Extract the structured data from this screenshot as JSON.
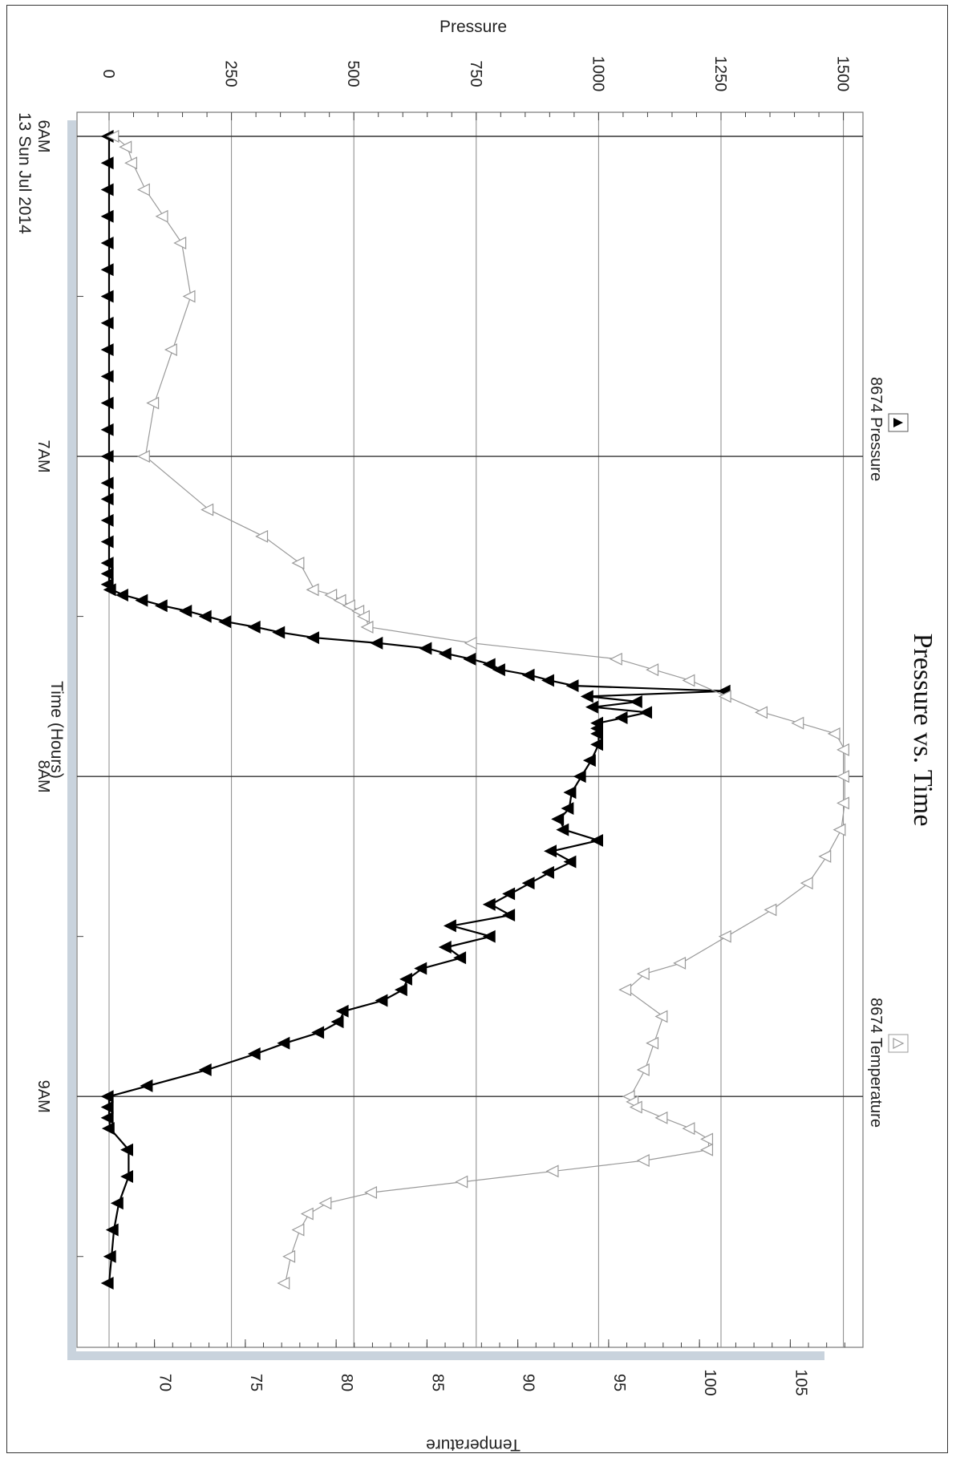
{
  "chart_data": {
    "type": "line",
    "title": "Pressure vs. Time",
    "xlabel": "Time (Hours)",
    "date_label": "13 Sun Jul 2014",
    "y1label": "Pressure",
    "y2label": "Temperature",
    "x_ticks": [
      "6AM",
      "7AM",
      "8AM",
      "9AM"
    ],
    "x_range": [
      "06:00",
      "09:35"
    ],
    "y1_ticks": [
      0,
      250,
      500,
      750,
      1000,
      1250,
      1500
    ],
    "y1lim": [
      0,
      1540
    ],
    "y2_ticks": [
      70,
      75,
      80,
      85,
      90,
      95,
      100,
      105
    ],
    "y2lim": [
      67.5,
      109
    ],
    "grid": true,
    "orientation": "rotated 90° clockwise",
    "legend": [
      "8674 Pressure",
      "8674 Temperature"
    ],
    "series": [
      {
        "name": "8674 Pressure",
        "axis": "Pressure",
        "marker": "filled-triangle",
        "color": "#000000",
        "x": [
          "06:00",
          "06:05",
          "06:10",
          "06:15",
          "06:20",
          "06:25",
          "06:30",
          "06:35",
          "06:40",
          "06:45",
          "06:50",
          "06:55",
          "07:00",
          "07:05",
          "07:08",
          "07:12",
          "07:16",
          "07:20",
          "07:22",
          "07:24",
          "07:25",
          "07:26",
          "07:27",
          "07:28",
          "07:29",
          "07:30",
          "07:31",
          "07:32",
          "07:33",
          "07:34",
          "07:35",
          "07:36",
          "07:37",
          "07:38",
          "07:39",
          "07:40",
          "07:41",
          "07:42",
          "07:43",
          "07:44",
          "07:45",
          "07:46",
          "07:47",
          "07:48",
          "07:49",
          "07:50",
          "07:51",
          "07:52",
          "07:54",
          "07:57",
          "08:00",
          "08:03",
          "08:06",
          "08:08",
          "08:10",
          "08:12",
          "08:14",
          "08:16",
          "08:18",
          "08:20",
          "08:22",
          "08:24",
          "08:26",
          "08:28",
          "08:30",
          "08:32",
          "08:34",
          "08:36",
          "08:38",
          "08:40",
          "08:42",
          "08:44",
          "08:46",
          "08:48",
          "08:50",
          "08:52",
          "08:55",
          "08:58",
          "09:00",
          "09:02",
          "09:04",
          "09:06",
          "09:10",
          "09:15",
          "09:20",
          "09:25",
          "09:30",
          "09:35"
        ],
        "values": [
          0,
          0,
          0,
          0,
          0,
          0,
          0,
          0,
          0,
          0,
          0,
          0,
          0,
          0,
          0,
          0,
          0,
          0,
          0,
          0,
          5,
          30,
          70,
          110,
          160,
          200,
          240,
          300,
          350,
          420,
          550,
          650,
          690,
          740,
          780,
          800,
          860,
          900,
          950,
          1260,
          980,
          1080,
          990,
          1100,
          1050,
          1000,
          1000,
          1000,
          1000,
          985,
          965,
          945,
          940,
          920,
          930,
          1000,
          905,
          945,
          900,
          860,
          820,
          780,
          820,
          700,
          780,
          690,
          720,
          640,
          610,
          600,
          560,
          480,
          470,
          430,
          360,
          300,
          200,
          80,
          0,
          0,
          0,
          2,
          40,
          40,
          20,
          10,
          5,
          0
        ]
      },
      {
        "name": "8674 Temperature",
        "axis": "Temperature",
        "marker": "open-triangle",
        "color": "#999999",
        "x": [
          "06:00",
          "06:02",
          "06:05",
          "06:10",
          "06:15",
          "06:20",
          "06:30",
          "06:40",
          "06:50",
          "07:00",
          "07:10",
          "07:15",
          "07:20",
          "07:25",
          "07:26",
          "07:27",
          "07:28",
          "07:29",
          "07:30",
          "07:32",
          "07:35",
          "07:38",
          "07:40",
          "07:42",
          "07:45",
          "07:48",
          "07:50",
          "07:52",
          "07:55",
          "08:00",
          "08:05",
          "08:10",
          "08:15",
          "08:20",
          "08:25",
          "08:30",
          "08:35",
          "08:37",
          "08:40",
          "08:45",
          "08:50",
          "08:55",
          "09:00",
          "09:01",
          "09:02",
          "09:04",
          "09:06",
          "09:08",
          "09:10",
          "09:12",
          "09:14",
          "09:16",
          "09:18",
          "09:20",
          "09:22",
          "09:25",
          "09:30",
          "09:35"
        ],
        "values": [
          67.8,
          68.5,
          68.8,
          69.5,
          70.5,
          71.5,
          72,
          71,
          70,
          69.5,
          73,
          76,
          78,
          78.8,
          79.8,
          80.3,
          80.8,
          81.3,
          81.6,
          81.8,
          87.5,
          95.5,
          97.5,
          99.5,
          101.5,
          103.5,
          105.5,
          107.5,
          108,
          108,
          108,
          107.8,
          107,
          106,
          104,
          101.5,
          99,
          97,
          96,
          98,
          97.5,
          97,
          96.2,
          96.4,
          96.6,
          98,
          99.5,
          100.5,
          100.5,
          97,
          92,
          87,
          82,
          79.5,
          78.5,
          78,
          77.5,
          77.2
        ]
      }
    ]
  },
  "legend": {
    "pressure_label": "8674 Pressure",
    "temperature_label": "8674 Temperature"
  }
}
